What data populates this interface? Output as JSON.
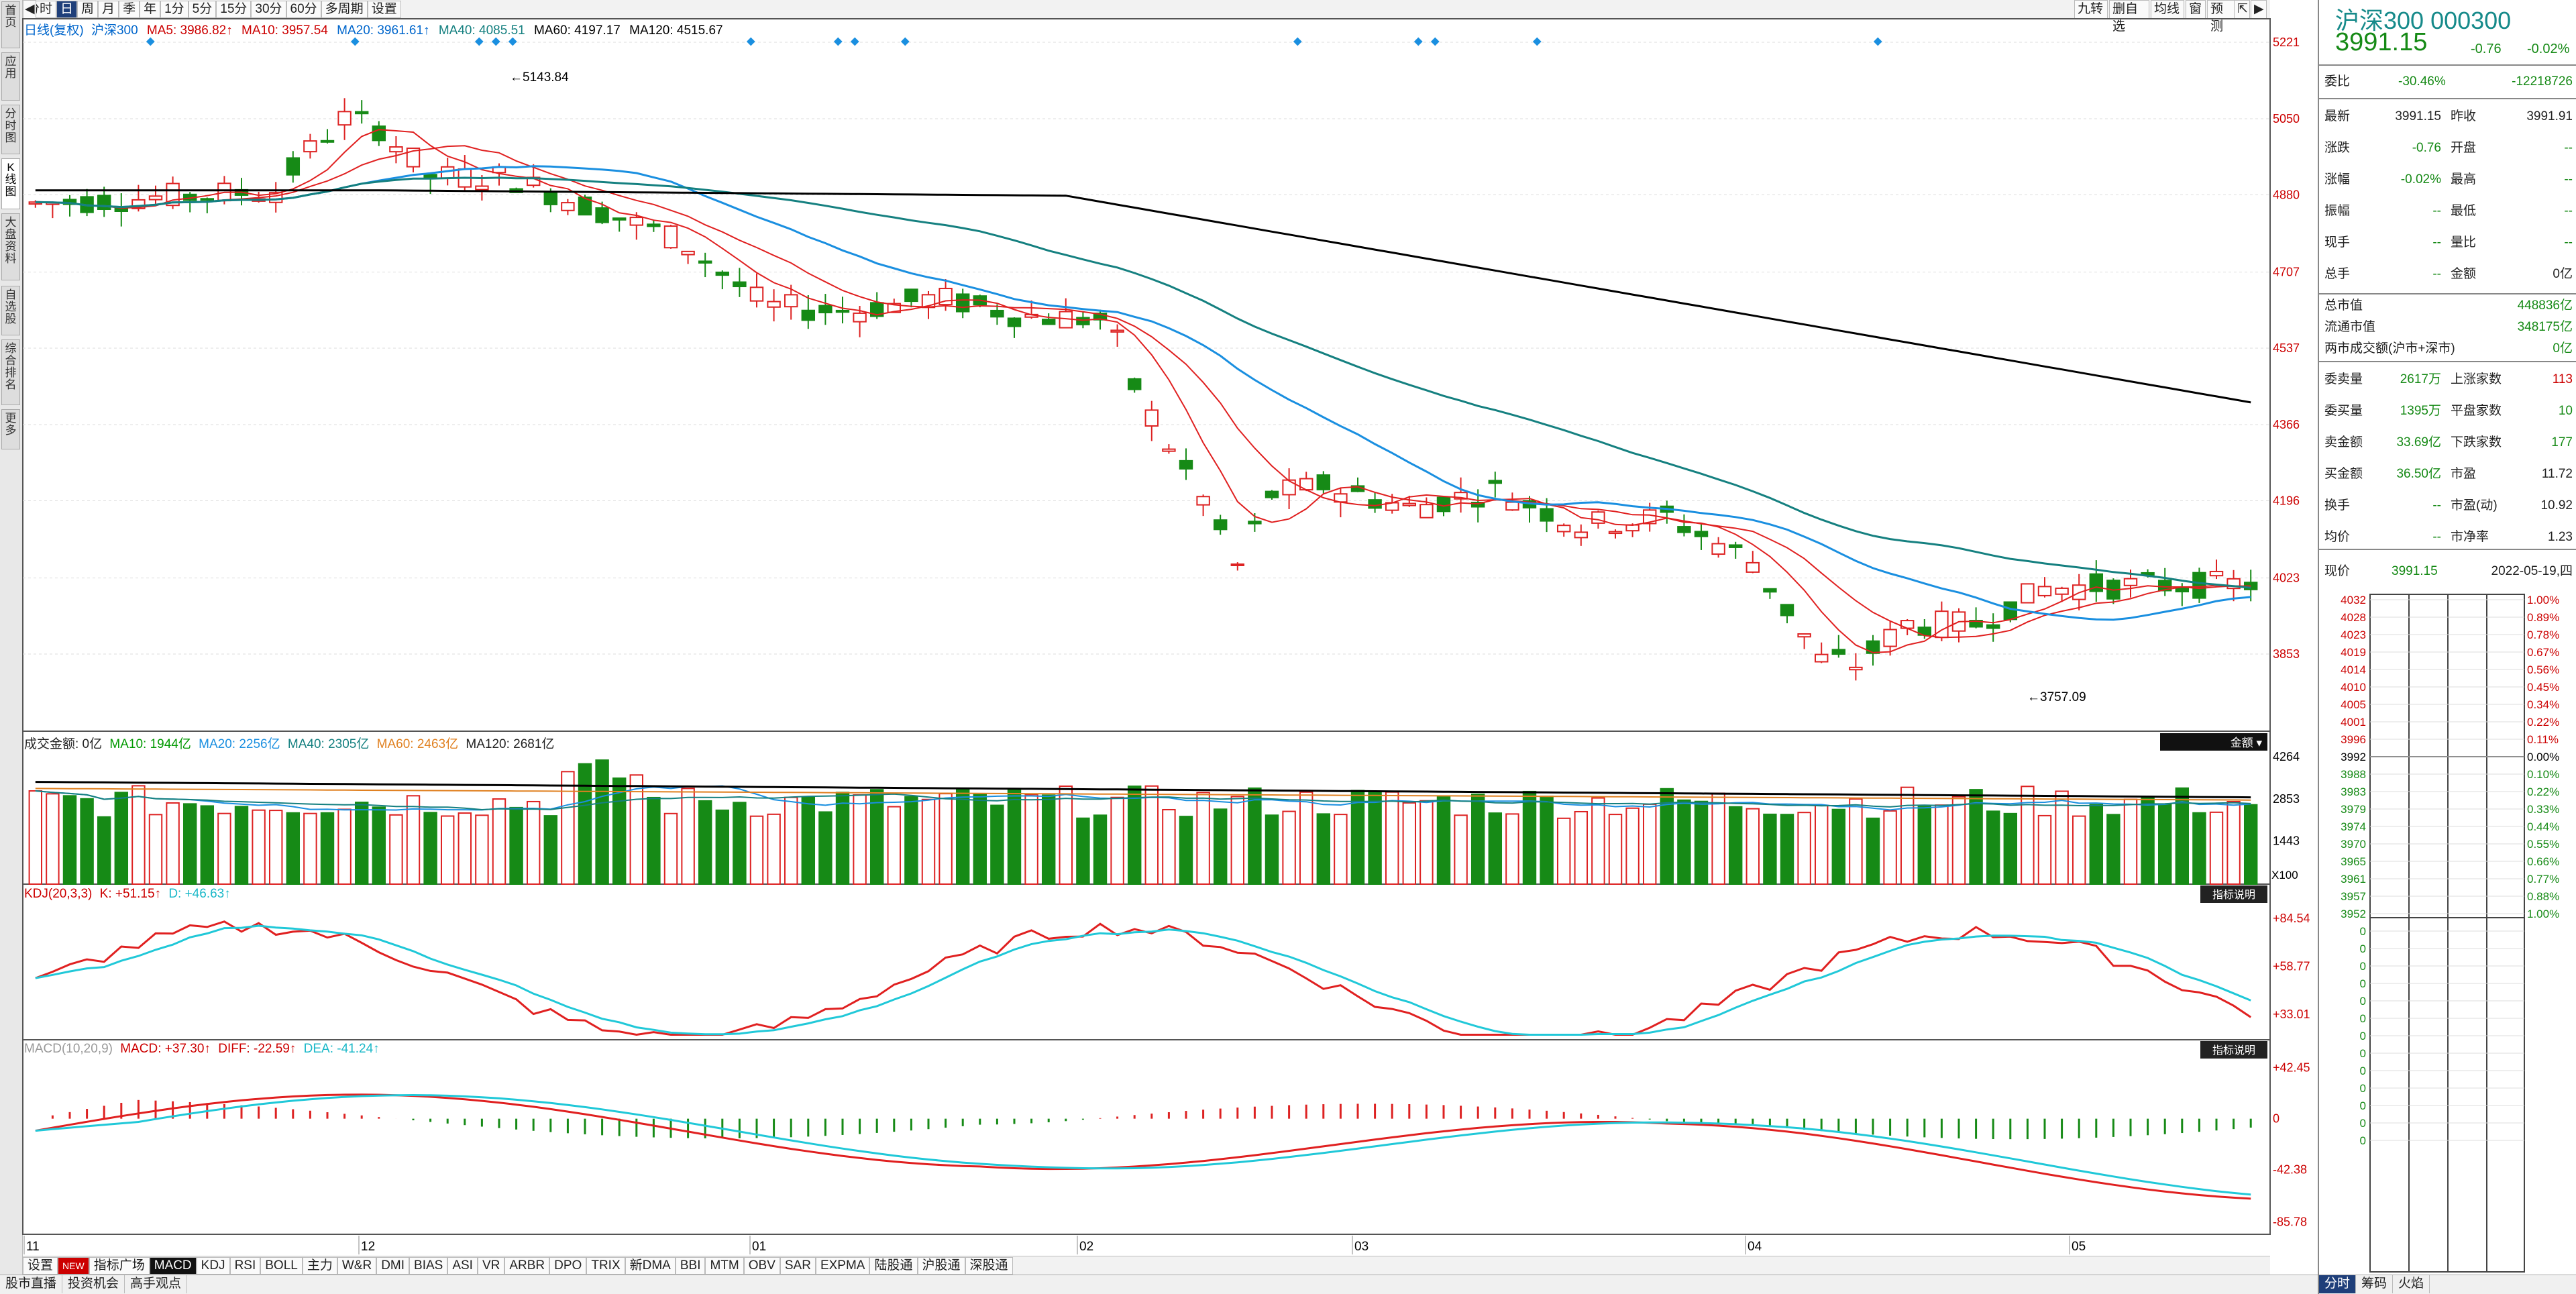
{
  "left_tabs": [
    "首页",
    "应用",
    "分时图",
    "K线图",
    "大盘资料",
    "自选股",
    "综合排名",
    "更多"
  ],
  "periods": [
    "分时",
    "日",
    "周",
    "月",
    "季",
    "年",
    "1分",
    "5分",
    "15分",
    "30分",
    "60分",
    "多周期",
    "设置"
  ],
  "right_tools": [
    "九转",
    "删自选",
    "均线",
    "窗",
    "预测"
  ],
  "ma_legend": {
    "label": "日线(复权)",
    "name": "沪深300",
    "ma5": "MA5: 3986.82↑",
    "ma10": "MA10: 3957.54",
    "ma20": "MA20: 3961.61↑",
    "ma40": "MA40: 4085.51",
    "ma60": "MA60: 4197.17",
    "ma120": "MA120: 4515.67"
  },
  "price_axis": [
    "5221",
    "5050",
    "4880",
    "4707",
    "4537",
    "4366",
    "4196",
    "4023",
    "3853"
  ],
  "high_label": "5143.84",
  "low_label": "3757.09",
  "vol_legend": {
    "label": "成交金额: 0亿",
    "ma10": "MA10: 1944亿",
    "ma20": "MA20: 2256亿",
    "ma40": "MA40: 2305亿",
    "ma60": "MA60: 2463亿",
    "ma120": "MA120: 2681亿"
  },
  "vol_axis": [
    "4264",
    "2853",
    "1443"
  ],
  "vol_unit": "X100",
  "vol_btn": "金额",
  "kdj_legend": {
    "label": "KDJ(20,3,3)",
    "k": "K: +51.15↑",
    "d": "D: +46.63↑"
  },
  "kdj_axis": [
    "+84.54",
    "+58.77",
    "+33.01"
  ],
  "macd_legend": {
    "label": "MACD(10,20,9)",
    "macd": "MACD: +37.30↑",
    "diff": "DIFF: -22.59↑",
    "dea": "DEA: -41.24↑"
  },
  "macd_axis": [
    "+42.45",
    "0",
    "-42.38",
    "-85.78"
  ],
  "ind_btn": "指标说明",
  "months": [
    "11",
    "12",
    "01",
    "02",
    "03",
    "04",
    "05"
  ],
  "indicator_tabs": [
    "设置",
    "NEW",
    "指标广场",
    "MACD",
    "KDJ",
    "RSI",
    "BOLL",
    "主力",
    "W&R",
    "DMI",
    "BIAS",
    "ASI",
    "VR",
    "ARBR",
    "DPO",
    "TRIX",
    "新DMA",
    "BBI",
    "MTM",
    "OBV",
    "SAR",
    "EXPMA",
    "陆股通",
    "沪股通",
    "深股通"
  ],
  "status_tabs": [
    "股市直播",
    "投资机会",
    "高手观点"
  ],
  "quote": {
    "title": "沪深300 000300",
    "price": "3991.15",
    "change": "-0.76",
    "pct": "-0.02%"
  },
  "wb": {
    "label": "委比",
    "pct": "-30.46%",
    "val": "-12218726"
  },
  "detail_rows": [
    [
      "最新",
      "3991.15",
      "昨收",
      "3991.91"
    ],
    [
      "涨跌",
      "-0.76",
      "开盘",
      "--"
    ],
    [
      "涨幅",
      "-0.02%",
      "最高",
      "--"
    ],
    [
      "振幅",
      "--",
      "最低",
      "--"
    ],
    [
      "现手",
      "--",
      "量比",
      "--"
    ],
    [
      "总手",
      "--",
      "金额",
      "0亿"
    ]
  ],
  "cap_rows": [
    [
      "总市值",
      "448836亿"
    ],
    [
      "流通市值",
      "348175亿"
    ],
    [
      "两市成交额(沪市+深市)",
      "0亿"
    ]
  ],
  "breadth_rows": [
    [
      "委卖量",
      "2617万",
      "上涨家数",
      "113"
    ],
    [
      "委买量",
      "1395万",
      "平盘家数",
      "10"
    ],
    [
      "卖金额",
      "33.69亿",
      "下跌家数",
      "177"
    ],
    [
      "买金额",
      "36.50亿",
      "市盈",
      "11.72"
    ],
    [
      "换手",
      "--",
      "市盈(动)",
      "10.92"
    ],
    [
      "均价",
      "--",
      "市净率",
      "1.23"
    ]
  ],
  "intraday": {
    "label": "现价",
    "price": "3991.15",
    "date": "2022-05-19,四"
  },
  "intraday_left": [
    "4032",
    "4028",
    "4023",
    "4019",
    "4014",
    "4010",
    "4005",
    "4001",
    "3996",
    "3992",
    "3988",
    "3983",
    "3979",
    "3974",
    "3970",
    "3965",
    "3961",
    "3957",
    "3952",
    "0",
    "0",
    "0",
    "0",
    "0",
    "0",
    "0",
    "0",
    "0",
    "0",
    "0",
    "0",
    "0"
  ],
  "intraday_right": [
    "1.00%",
    "0.89%",
    "0.78%",
    "0.67%",
    "0.56%",
    "0.45%",
    "0.34%",
    "0.22%",
    "0.11%",
    "0.00%",
    "0.10%",
    "0.22%",
    "0.33%",
    "0.44%",
    "0.55%",
    "0.66%",
    "0.77%",
    "0.88%",
    "1.00%"
  ],
  "intraday_tabs": [
    "分时",
    "筹码",
    "火焰"
  ],
  "colors": {
    "up": "#dd2222",
    "down": "#168a16",
    "ma5": "#e02020",
    "ma10": "#e02020",
    "ma20": "#1a8fe0",
    "ma40": "#158080",
    "ma120": "#000000",
    "k": "#e02020",
    "d": "#20c8d8"
  }
}
